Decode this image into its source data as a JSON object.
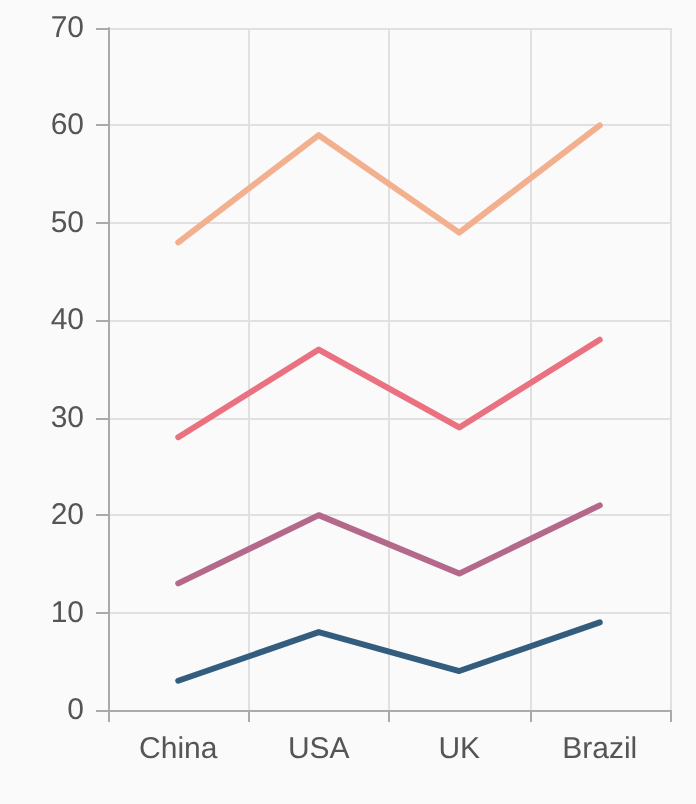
{
  "chart_data": {
    "type": "line",
    "categories": [
      "China",
      "USA",
      "UK",
      "Brazil"
    ],
    "series": [
      {
        "color": "#335d7e",
        "values": [
          3,
          8,
          4,
          9
        ]
      },
      {
        "color": "#b5698a",
        "values": [
          13,
          20,
          14,
          21
        ]
      },
      {
        "color": "#ea7180",
        "values": [
          28,
          37,
          29,
          38
        ]
      },
      {
        "color": "#f3b08f",
        "values": [
          48,
          59,
          49,
          60
        ]
      }
    ],
    "ylim": [
      0,
      70
    ],
    "yticks": [
      0,
      10,
      20,
      30,
      40,
      50,
      60,
      70
    ],
    "grid": true,
    "marker": "none",
    "line_style": "solid"
  }
}
